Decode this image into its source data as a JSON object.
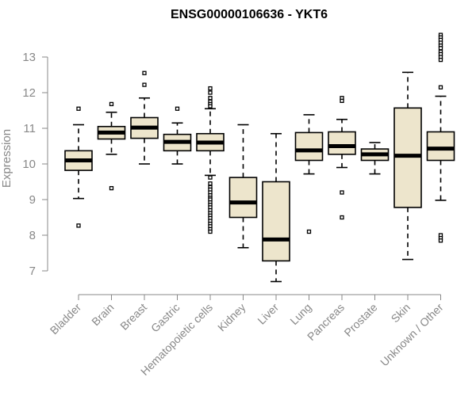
{
  "chart_data": {
    "type": "box",
    "title": "ENSG00000106636 - YKT6",
    "xlabel": "",
    "ylabel": "Expression",
    "ylim": [
      6.6,
      13.9
    ],
    "yticks": [
      7,
      8,
      9,
      10,
      11,
      12,
      13
    ],
    "grid": false,
    "colors": {
      "box_fill": "#ede5cc",
      "stroke": "#000000",
      "axis": "#888888",
      "text": "#888888"
    },
    "boxes": [
      {
        "category": "Bladder",
        "whisker_low": 9.03,
        "q1": 9.82,
        "median": 10.1,
        "q3": 10.37,
        "whisker_high": 11.1,
        "outliers": [
          11.55,
          8.27
        ]
      },
      {
        "category": "Brain",
        "whisker_low": 10.27,
        "q1": 10.7,
        "median": 10.88,
        "q3": 11.05,
        "whisker_high": 11.45,
        "outliers": [
          11.68,
          9.32
        ]
      },
      {
        "category": "Breast",
        "whisker_low": 10.0,
        "q1": 10.72,
        "median": 11.02,
        "q3": 11.3,
        "whisker_high": 11.85,
        "outliers": [
          12.55,
          12.22
        ]
      },
      {
        "category": "Gastric",
        "whisker_low": 10.0,
        "q1": 10.37,
        "median": 10.62,
        "q3": 10.83,
        "whisker_high": 11.15,
        "outliers": [
          11.55
        ]
      },
      {
        "category": "Hematopoietic cells",
        "whisker_low": 9.68,
        "q1": 10.37,
        "median": 10.6,
        "q3": 10.85,
        "whisker_high": 11.55,
        "outliers": [
          12.12,
          12.0,
          11.85,
          11.75,
          11.68,
          11.62,
          9.62,
          9.45,
          9.35,
          9.28,
          9.2,
          9.12,
          9.05,
          9.0,
          8.92,
          8.85,
          8.78,
          8.7,
          8.62,
          8.55,
          8.48,
          8.4,
          8.32,
          8.25,
          8.17,
          8.1
        ]
      },
      {
        "category": "Kidney",
        "whisker_low": 7.65,
        "q1": 8.5,
        "median": 8.92,
        "q3": 9.62,
        "whisker_high": 11.1,
        "outliers": []
      },
      {
        "category": "Liver",
        "whisker_low": 6.7,
        "q1": 7.28,
        "median": 7.88,
        "q3": 9.5,
        "whisker_high": 10.85,
        "outliers": []
      },
      {
        "category": "Lung",
        "whisker_low": 9.72,
        "q1": 10.1,
        "median": 10.38,
        "q3": 10.88,
        "whisker_high": 11.38,
        "outliers": [
          8.1
        ]
      },
      {
        "category": "Pancreas",
        "whisker_low": 9.9,
        "q1": 10.27,
        "median": 10.5,
        "q3": 10.9,
        "whisker_high": 11.25,
        "outliers": [
          11.85,
          11.77,
          9.2,
          8.5
        ]
      },
      {
        "category": "Prostate",
        "whisker_low": 9.72,
        "q1": 10.1,
        "median": 10.27,
        "q3": 10.42,
        "whisker_high": 10.6,
        "outliers": []
      },
      {
        "category": "Skin",
        "whisker_low": 7.32,
        "q1": 8.78,
        "median": 10.23,
        "q3": 11.57,
        "whisker_high": 12.57,
        "outliers": []
      },
      {
        "category": "Unknown / Other",
        "whisker_low": 8.98,
        "q1": 10.1,
        "median": 10.43,
        "q3": 10.9,
        "whisker_high": 11.9,
        "outliers": [
          13.62,
          13.55,
          13.48,
          13.4,
          13.32,
          13.25,
          13.15,
          13.08,
          13.0,
          12.92,
          12.15,
          8.0,
          7.92,
          7.85
        ]
      }
    ]
  }
}
